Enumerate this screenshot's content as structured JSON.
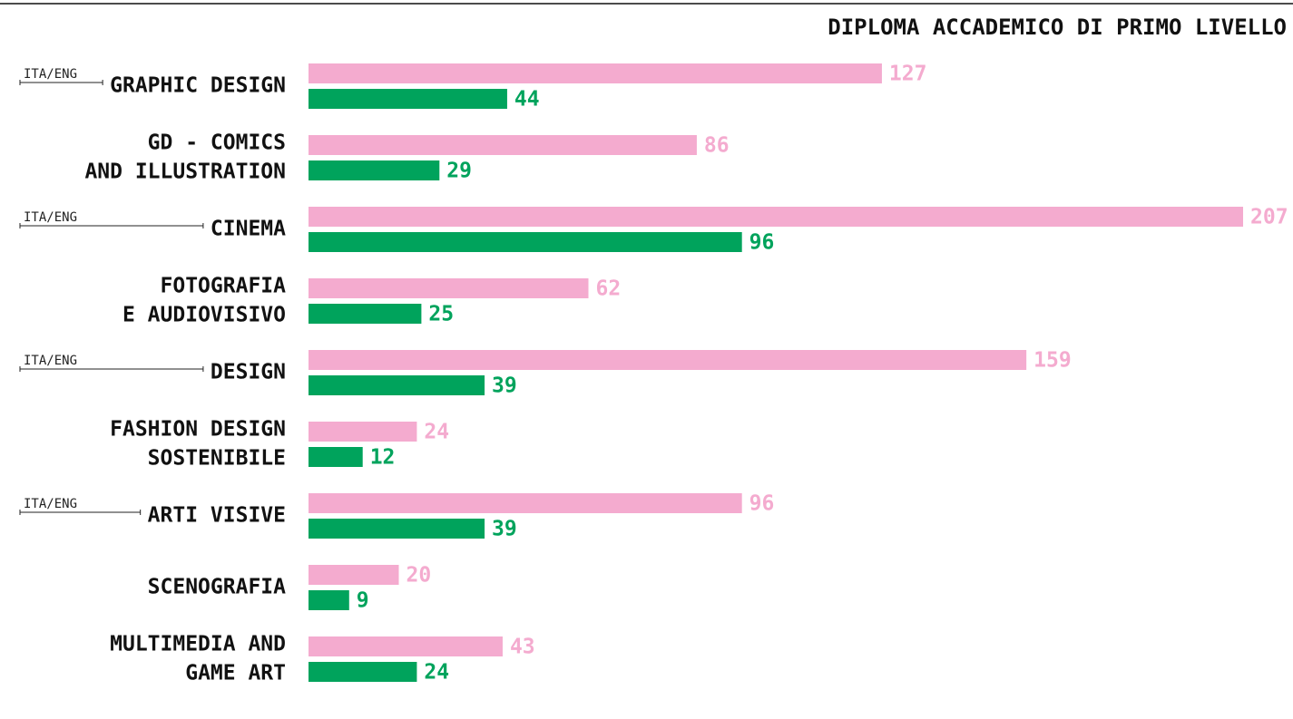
{
  "chart_data": {
    "type": "bar",
    "orientation": "horizontal",
    "title": "DIPLOMA ACCADEMICO DI PRIMO LIVELLO",
    "categories": [
      [
        "GRAPHIC DESIGN"
      ],
      [
        "GD - COMICS",
        "AND ILLUSTRATION"
      ],
      [
        "CINEMA"
      ],
      [
        "FOTOGRAFIA",
        "E AUDIOVISIVO"
      ],
      [
        "DESIGN"
      ],
      [
        "FASHION DESIGN",
        "SOSTENIBILE"
      ],
      [
        "ARTI VISIVE"
      ],
      [
        "SCENOGRAFIA"
      ],
      [
        "MULTIMEDIA AND",
        "GAME ART"
      ]
    ],
    "tags": [
      "ITA/ENG",
      null,
      "ITA/ENG",
      null,
      "ITA/ENG",
      null,
      "ITA/ENG",
      null,
      null
    ],
    "series": [
      {
        "color": "#f4abcf",
        "values": [
          127,
          86,
          207,
          62,
          159,
          24,
          96,
          20,
          43
        ]
      },
      {
        "color": "#00a35c",
        "values": [
          44,
          29,
          96,
          25,
          39,
          12,
          39,
          9,
          24
        ]
      }
    ]
  }
}
